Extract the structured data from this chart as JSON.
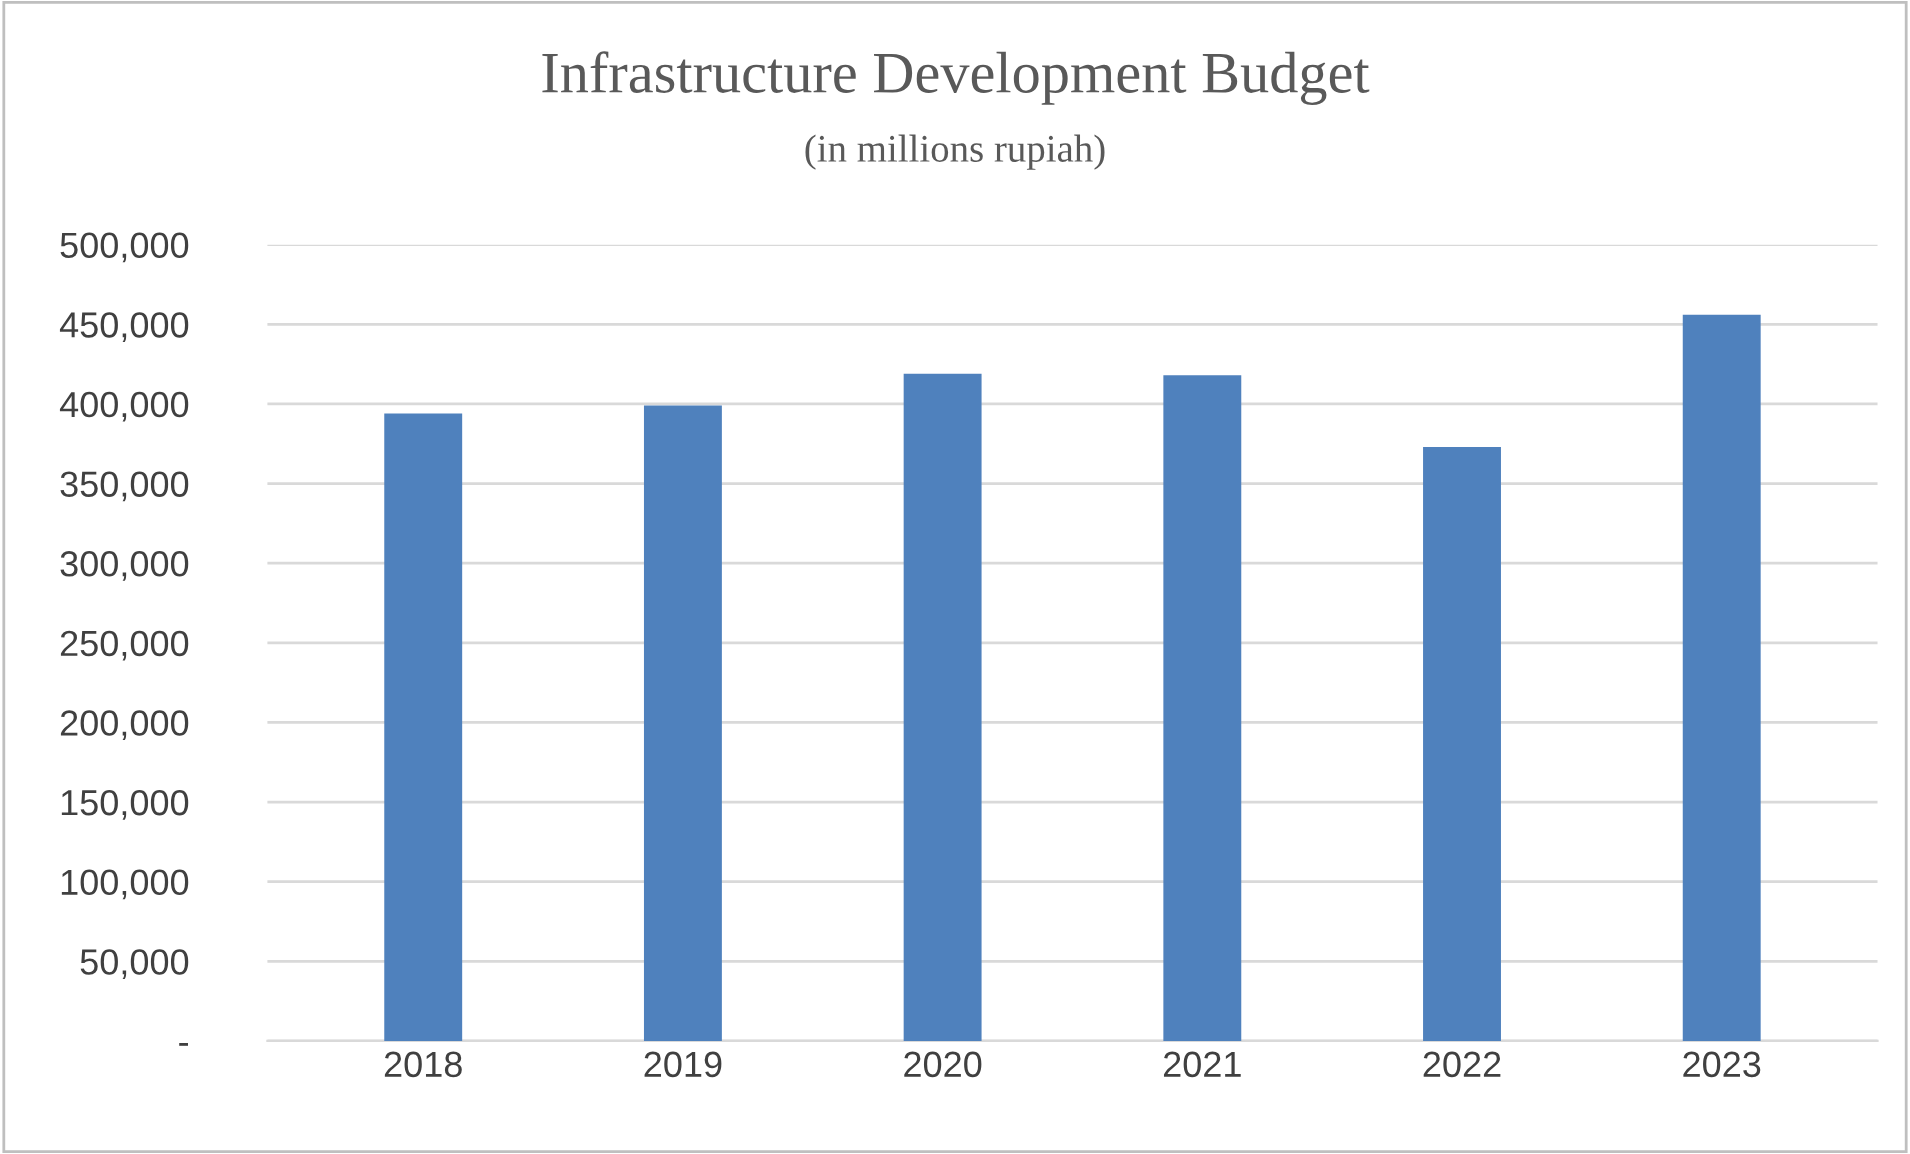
{
  "chart_data": {
    "type": "bar",
    "title": "Infrastructure Development Budget",
    "subtitle": "(in millions rupiah)",
    "categories": [
      "2018",
      "2019",
      "2020",
      "2021",
      "2022",
      "2023"
    ],
    "values": [
      394000,
      399000,
      419000,
      418000,
      373000,
      456000
    ],
    "color": "#4f81bd",
    "ylim": [
      0,
      500000
    ],
    "yticks": [
      {
        "value": 0,
        "label": "-"
      },
      {
        "value": 50000,
        "label": "50,000"
      },
      {
        "value": 100000,
        "label": "100,000"
      },
      {
        "value": 150000,
        "label": "150,000"
      },
      {
        "value": 200000,
        "label": "200,000"
      },
      {
        "value": 250000,
        "label": "250,000"
      },
      {
        "value": 300000,
        "label": "300,000"
      },
      {
        "value": 350000,
        "label": "350,000"
      },
      {
        "value": 400000,
        "label": "400,000"
      },
      {
        "value": 450000,
        "label": "450,000"
      },
      {
        "value": 500000,
        "label": "500,000"
      }
    ],
    "grid": "y"
  }
}
